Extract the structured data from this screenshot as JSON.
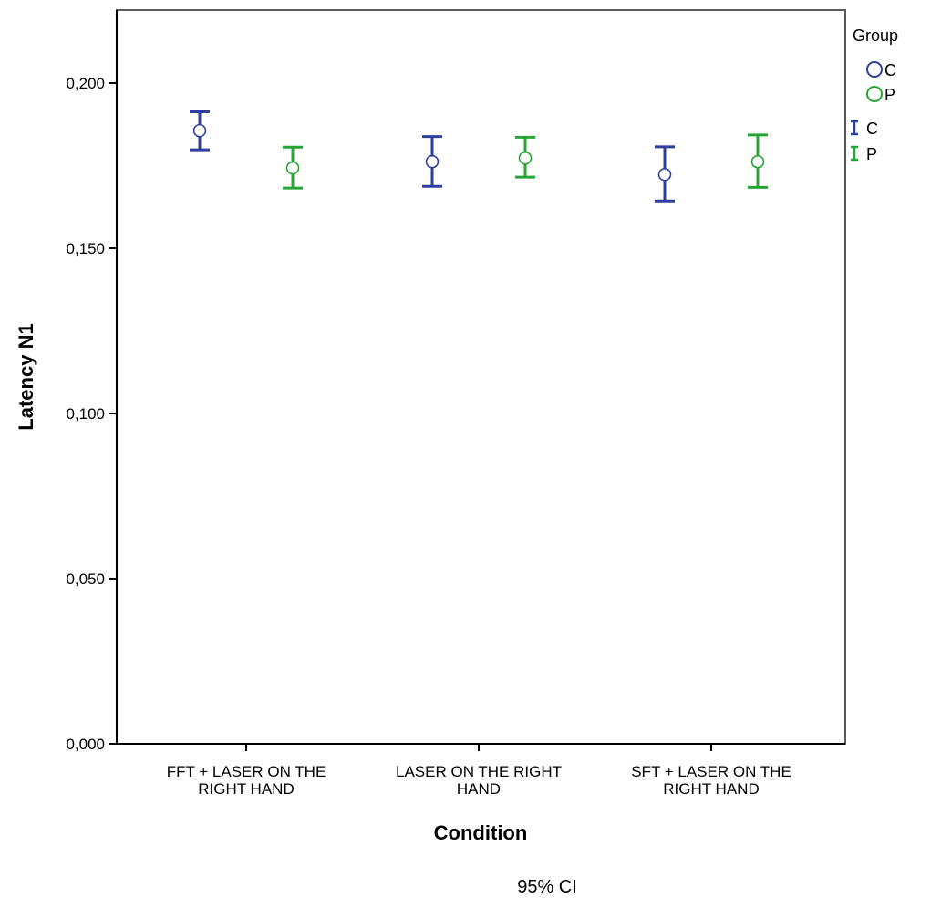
{
  "chart_data": {
    "type": "errorbar",
    "xlabel": "Condition",
    "ylabel": "Latency N1",
    "footnote": "95% CI",
    "ylim": [
      0,
      0.22
    ],
    "yticks": [
      "0,000",
      "0,050",
      "0,100",
      "0,150",
      "0,200"
    ],
    "ytick_values": [
      0,
      0.05,
      0.1,
      0.15,
      0.2
    ],
    "categories": [
      [
        "FFT + LASER ON THE",
        "RIGHT HAND"
      ],
      [
        "LASER ON THE RIGHT",
        "HAND"
      ],
      [
        "SFT + LASER ON THE",
        "RIGHT HAND"
      ]
    ],
    "legend": {
      "title": "Group",
      "position": "right",
      "marker_entries": [
        "C",
        "P"
      ],
      "errorbar_entries": [
        "C",
        "P"
      ]
    },
    "series": [
      {
        "name": "C",
        "color": "#2f3f9e",
        "mean": [
          0.1856,
          0.1762,
          0.1723
        ],
        "lower": [
          0.1798,
          0.1687,
          0.1643
        ],
        "upper": [
          0.1913,
          0.1838,
          0.1807
        ]
      },
      {
        "name": "P",
        "color": "#27a636",
        "mean": [
          0.1743,
          0.1773,
          0.1762
        ],
        "lower": [
          0.1682,
          0.1715,
          0.1684
        ],
        "upper": [
          0.1806,
          0.1836,
          0.1843
        ]
      }
    ]
  }
}
